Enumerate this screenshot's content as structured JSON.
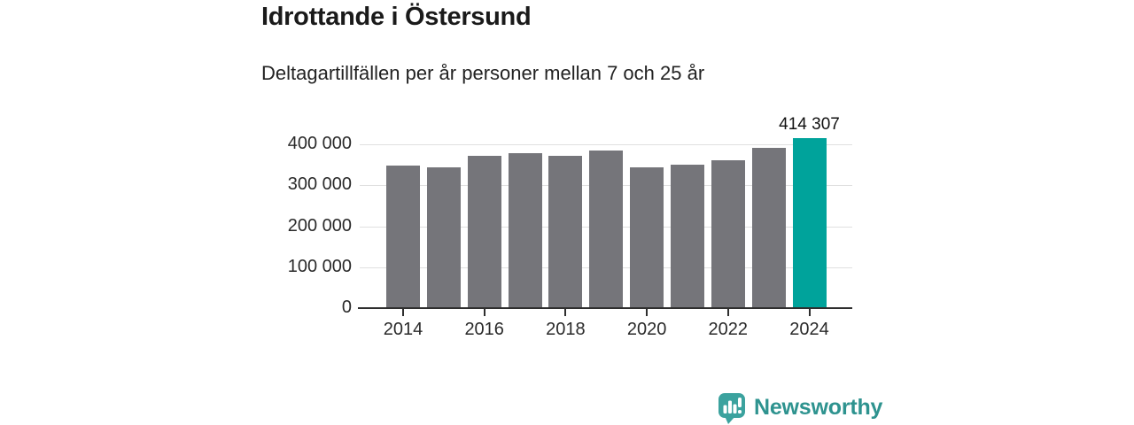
{
  "header": {
    "title": "Idrottande i Östersund",
    "subtitle": "Deltagartillfällen per år personer mellan 7 och 25 år"
  },
  "chart_data": {
    "type": "bar",
    "title": "Idrottande i Östersund",
    "subtitle": "Deltagartillfällen per år personer mellan 7 och 25 år",
    "xlabel": "",
    "ylabel": "",
    "categories": [
      2014,
      2015,
      2016,
      2017,
      2018,
      2019,
      2020,
      2021,
      2022,
      2023,
      2024
    ],
    "values": [
      349000,
      344000,
      371000,
      379000,
      372000,
      385000,
      343000,
      351000,
      362000,
      392000,
      414307
    ],
    "highlight_index": 10,
    "highlight_label": "414 307",
    "y_ticks": [
      {
        "value": 0,
        "label": "0"
      },
      {
        "value": 100000,
        "label": "100 000"
      },
      {
        "value": 200000,
        "label": "200 000"
      },
      {
        "value": 300000,
        "label": "300 000"
      },
      {
        "value": 400000,
        "label": "400 000"
      }
    ],
    "x_tick_years": [
      2014,
      2016,
      2018,
      2020,
      2022,
      2024
    ],
    "ylim": [
      0,
      430000
    ],
    "grid": true,
    "legend": false,
    "colors": {
      "bar": "#75757a",
      "highlight": "#00a39b",
      "gridline": "#e0e0e0",
      "axis": "#2e2e2e",
      "tick_text": "#2a2a2a"
    }
  },
  "footer": {
    "brand": "Newsworthy",
    "brand_color": "#2e938f",
    "icon_color": "#3ba29e"
  }
}
